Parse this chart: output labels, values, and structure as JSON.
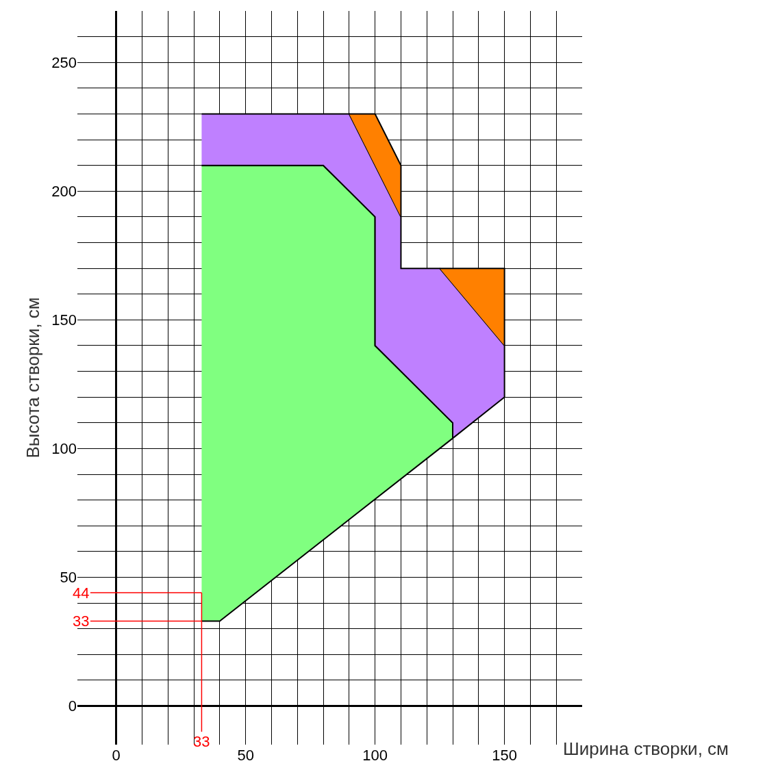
{
  "chart_data": {
    "type": "area",
    "xlabel": "Ширина створки, см",
    "ylabel": "Высота створки, см",
    "xlim": [
      -15,
      180
    ],
    "ylim": [
      -15,
      270
    ],
    "xticks": [
      0,
      {
        "value": 10,
        "label": null
      },
      {
        "value": 20,
        "label": null
      },
      {
        "value": 30,
        "label": null
      },
      {
        "value": 40,
        "label": null
      },
      50,
      {
        "value": 60,
        "label": null
      },
      {
        "value": 70,
        "label": null
      },
      {
        "value": 80,
        "label": null
      },
      {
        "value": 90,
        "label": null
      },
      100,
      {
        "value": 110,
        "label": null
      },
      {
        "value": 120,
        "label": null
      },
      {
        "value": 130,
        "label": null
      },
      {
        "value": 140,
        "label": null
      },
      150,
      {
        "value": 160,
        "label": null
      },
      {
        "value": 170,
        "label": null
      }
    ],
    "yticks": [
      0,
      {
        "value": 10,
        "label": null
      },
      {
        "value": 20,
        "label": null
      },
      {
        "value": 30,
        "label": null
      },
      {
        "value": 40,
        "label": null
      },
      50,
      {
        "value": 60,
        "label": null
      },
      {
        "value": 70,
        "label": null
      },
      {
        "value": 80,
        "label": null
      },
      {
        "value": 90,
        "label": null
      },
      100,
      {
        "value": 110,
        "label": null
      },
      {
        "value": 120,
        "label": null
      },
      {
        "value": 130,
        "label": null
      },
      {
        "value": 140,
        "label": null
      },
      150,
      {
        "value": 160,
        "label": null
      },
      {
        "value": 170,
        "label": null
      },
      {
        "value": 180,
        "label": null
      },
      {
        "value": 190,
        "label": null
      },
      200,
      {
        "value": 210,
        "label": null
      },
      {
        "value": 220,
        "label": null
      },
      {
        "value": 230,
        "label": null
      },
      {
        "value": 240,
        "label": null
      },
      250,
      {
        "value": 260,
        "label": null
      }
    ],
    "grid": true,
    "series": [
      {
        "color": "#80ff80",
        "x": [
          33,
          40,
          130,
          130,
          100,
          100,
          80,
          33
        ],
        "values": [
          33,
          33,
          104,
          110,
          140,
          190,
          210,
          210
        ]
      },
      {
        "color": "#bf80ff",
        "x": [
          33,
          90,
          110,
          110,
          125,
          150,
          150,
          130,
          130,
          100,
          100,
          80,
          33
        ],
        "values": [
          230,
          230,
          190,
          170,
          170,
          140,
          120,
          104,
          110,
          140,
          190,
          210,
          210
        ]
      },
      {
        "color": "#ff8000",
        "x": [
          90,
          100,
          110,
          110
        ],
        "values": [
          230,
          230,
          210,
          190
        ]
      },
      {
        "color": "#ff8000",
        "x": [
          125,
          150,
          150
        ],
        "values": [
          170,
          170,
          140
        ]
      }
    ],
    "ref_lines": [
      {
        "axis": "y",
        "value": 44,
        "label": "44",
        "color": "#ff0000"
      },
      {
        "axis": "y",
        "value": 33,
        "label": "33",
        "color": "#ff0000"
      },
      {
        "axis": "x",
        "value": 33,
        "label": "33",
        "color": "#ff0000"
      }
    ]
  }
}
